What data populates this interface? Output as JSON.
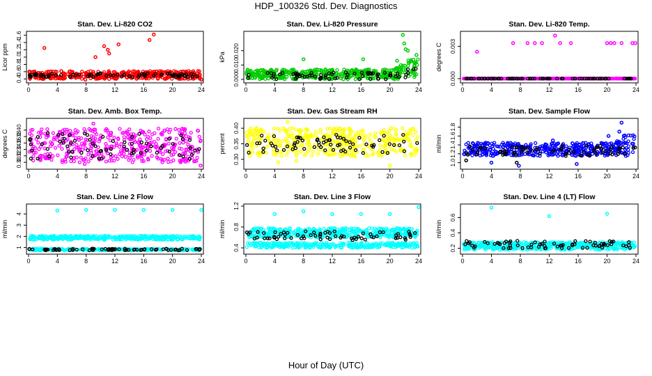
{
  "page": {
    "title": "HDP_100326  Std. Dev. Diagnostics",
    "xlabel": "Hour of Day (UTC)"
  },
  "chart_data": [
    {
      "type": "scatter",
      "title": "Stan. Dev. Li-820 CO2",
      "ylabel": "Licor ppm",
      "xlim": [
        0,
        24
      ],
      "ylim": [
        0.35,
        1.65
      ],
      "xticks": [
        "0",
        "4",
        "8",
        "12",
        "16",
        "20",
        "24"
      ],
      "yticks": [
        "0.4",
        "0.6",
        "0.8",
        "1.0",
        "1.2",
        "1.4",
        "1.6"
      ],
      "primary_color": "#ff0000",
      "black_points": "pale",
      "series": [
        {
          "name": "primary",
          "color": "#ff0000",
          "band": [
            0.4,
            0.62
          ],
          "outliers": [
            [
              2.2,
              1.25
            ],
            [
              9.3,
              1.0
            ],
            [
              10.5,
              1.3
            ],
            [
              11.0,
              1.2
            ],
            [
              11.2,
              1.1
            ],
            [
              12.5,
              1.35
            ],
            [
              16.8,
              1.47
            ],
            [
              17.4,
              1.62
            ],
            [
              21.0,
              0.4
            ],
            [
              7.9,
              0.38
            ],
            [
              24.0,
              0.38
            ]
          ]
        },
        {
          "name": "black",
          "color": "#000000",
          "band": [
            0.45,
            0.56
          ],
          "outliers": []
        }
      ]
    },
    {
      "type": "scatter",
      "title": "Stan. Dev. Li-820 Pressure",
      "ylabel": "kPa",
      "xlim": [
        0,
        24
      ],
      "ylim": [
        -0.001,
        0.032
      ],
      "xticks": [
        "0",
        "4",
        "8",
        "12",
        "16",
        "20",
        "24"
      ],
      "yticks": [
        "0.000",
        "0.010",
        "0.020"
      ],
      "primary_color": "#00cc00",
      "black_points": "normal",
      "series": [
        {
          "name": "primary",
          "color": "#00cc00",
          "band": [
            0.0,
            0.007
          ],
          "rising_after": 20.5,
          "rise_to": 0.014,
          "outliers": [
            [
              8.0,
              0.014
            ],
            [
              16.3,
              0.014
            ],
            [
              21.8,
              0.031
            ],
            [
              22.0,
              0.025
            ],
            [
              22.2,
              0.021
            ],
            [
              23.7,
              0.017
            ],
            [
              21.0,
              0.013
            ],
            [
              22.5,
              0.02
            ]
          ]
        },
        {
          "name": "black",
          "color": "#000000",
          "band": [
            0.0,
            0.005
          ],
          "rising_after": 20.5,
          "rise_to": 0.008,
          "outliers": []
        }
      ]
    },
    {
      "type": "scatter",
      "title": "Stan. Dev. Li-820 Temp.",
      "ylabel": "degrees C",
      "xlim": [
        0,
        24
      ],
      "ylim": [
        -0.0002,
        0.0042
      ],
      "xticks": [
        "0",
        "4",
        "8",
        "12",
        "16",
        "20",
        "24"
      ],
      "yticks": [
        "0.000",
        "0.003"
      ],
      "primary_color": "#ff00ff",
      "black_points": "baseline",
      "series": [
        {
          "name": "primary",
          "color": "#ff00ff",
          "band": [
            0.0,
            0.0
          ],
          "outliers": [
            [
              2.0,
              0.0025
            ],
            [
              7.0,
              0.0033
            ],
            [
              9.0,
              0.0033
            ],
            [
              10.0,
              0.0033
            ],
            [
              11.0,
              0.0033
            ],
            [
              12.8,
              0.004
            ],
            [
              13.5,
              0.0033
            ],
            [
              15.0,
              0.0033
            ],
            [
              20.0,
              0.0033
            ],
            [
              20.5,
              0.0033
            ],
            [
              21.0,
              0.0033
            ],
            [
              22.0,
              0.0033
            ],
            [
              23.5,
              0.0033
            ],
            [
              23.9,
              0.0033
            ]
          ]
        },
        {
          "name": "black",
          "color": "#000000",
          "band": [
            0.0,
            0.0
          ],
          "outliers": []
        }
      ]
    },
    {
      "type": "scatter",
      "title": "Stan. Dev. Amb. Box Temp.",
      "ylabel": "degrees C",
      "xlim": [
        0,
        24
      ],
      "ylim": [
        0.285,
        0.43
      ],
      "xticks": [
        "0",
        "4",
        "8",
        "12",
        "16",
        "20",
        "24"
      ],
      "yticks": [
        "0.30",
        "0.32",
        "0.34",
        "0.36",
        "0.38",
        "0.40"
      ],
      "primary_color": "#ff00ff",
      "black_points": "normal",
      "series": [
        {
          "name": "primary",
          "color": "#ff00ff",
          "band": [
            0.3,
            0.405
          ],
          "outliers": [
            [
              9.0,
              0.42
            ],
            [
              7.8,
              0.295
            ],
            [
              23.9,
              0.29
            ]
          ]
        },
        {
          "name": "black",
          "color": "#000000",
          "band": [
            0.31,
            0.39
          ],
          "outliers": []
        }
      ]
    },
    {
      "type": "scatter",
      "title": "Stan. Dev. Gas Stream RH",
      "ylabel": "percent",
      "xlim": [
        0,
        24
      ],
      "ylim": [
        0.275,
        0.425
      ],
      "xticks": [
        "0",
        "4",
        "8",
        "12",
        "16",
        "20",
        "24"
      ],
      "yticks": [
        "0.30",
        "0.35",
        "0.40"
      ],
      "primary_color": "#ffff00",
      "black_points": "normal",
      "series": [
        {
          "name": "primary",
          "color": "#ffff00",
          "band": [
            0.31,
            0.4
          ],
          "outliers": [
            [
              5.8,
              0.42
            ],
            [
              4.5,
              0.29
            ],
            [
              20.0,
              0.28
            ],
            [
              7.0,
              0.295
            ]
          ]
        },
        {
          "name": "black",
          "color": "#000000",
          "band": [
            0.32,
            0.38
          ],
          "outliers": []
        }
      ]
    },
    {
      "type": "scatter",
      "title": "Stan. Dev. Sample Flow",
      "ylabel": "ml/min",
      "xlim": [
        0,
        24
      ],
      "ylim": [
        0.9,
        1.95
      ],
      "xticks": [
        "0",
        "4",
        "8",
        "12",
        "16",
        "20",
        "24"
      ],
      "yticks": [
        "1.0",
        "1.2",
        "1.4",
        "1.6",
        "1.8"
      ],
      "primary_color": "#0000ff",
      "black_points": "normal",
      "series": [
        {
          "name": "primary",
          "color": "#0000ff",
          "band": [
            1.15,
            1.45
          ],
          "rising_after": 21.0,
          "rise_to": 1.75,
          "outliers": [
            [
              22.0,
              1.9
            ],
            [
              12.5,
              1.5
            ],
            [
              7.8,
              0.93
            ],
            [
              15.8,
              0.97
            ],
            [
              4.0,
              1.0
            ],
            [
              20.2,
              1.6
            ],
            [
              21.7,
              1.7
            ]
          ]
        },
        {
          "name": "black",
          "color": "#000000",
          "band": [
            1.15,
            1.4
          ],
          "outliers": [
            [
              0.5,
              1.05
            ],
            [
              7.5,
              1.0
            ]
          ]
        }
      ]
    },
    {
      "type": "scatter",
      "title": "Stan. Dev. Line 2 Flow",
      "ylabel": "ml/min",
      "xlim": [
        0,
        24
      ],
      "ylim": [
        0.6,
        4.7
      ],
      "xticks": [
        "0",
        "4",
        "8",
        "12",
        "16",
        "20",
        "24"
      ],
      "yticks": [
        "1",
        "2",
        "3",
        "4"
      ],
      "primary_color": "#00ffff",
      "black_points": "normal",
      "series": [
        {
          "name": "primary",
          "color": "#00ffff",
          "band": [
            1.7,
            2.05
          ],
          "lower_band": [
            0.75,
            0.9
          ],
          "outliers": [
            [
              4.0,
              4.3
            ],
            [
              8.0,
              4.35
            ],
            [
              12.0,
              4.35
            ],
            [
              16.0,
              4.35
            ],
            [
              20.0,
              4.35
            ],
            [
              24.0,
              4.35
            ]
          ]
        },
        {
          "name": "black",
          "color": "#000000",
          "band": [
            0.75,
            0.9
          ],
          "outliers": []
        }
      ]
    },
    {
      "type": "scatter",
      "title": "Stan. Dev. Line 3 Flow",
      "ylabel": "ml/min",
      "xlim": [
        0,
        24
      ],
      "ylim": [
        0.32,
        1.2
      ],
      "xticks": [
        "0",
        "4",
        "8",
        "12",
        "16",
        "20",
        "24"
      ],
      "yticks": [
        "0.4",
        "0.8",
        "1.2"
      ],
      "primary_color": "#00ffff",
      "black_points": "normal",
      "series": [
        {
          "name": "primary",
          "color": "#00ffff",
          "band": [
            0.6,
            0.78
          ],
          "lower_band": [
            0.4,
            0.5
          ],
          "outliers": [
            [
              4.0,
              1.05
            ],
            [
              8.0,
              1.1
            ],
            [
              12.0,
              1.05
            ],
            [
              16.0,
              1.05
            ],
            [
              20.0,
              1.05
            ],
            [
              24.0,
              1.18
            ]
          ]
        },
        {
          "name": "black",
          "color": "#000000",
          "band": [
            0.55,
            0.72
          ],
          "outliers": []
        }
      ]
    },
    {
      "type": "scatter",
      "title": "Stan. Dev. Line 4 (LT) Flow",
      "ylabel": "ml/min",
      "xlim": [
        0,
        24
      ],
      "ylim": [
        0.15,
        0.75
      ],
      "xticks": [
        "0",
        "4",
        "8",
        "12",
        "16",
        "20",
        "24"
      ],
      "yticks": [
        "0.2",
        "0.4",
        "0.6"
      ],
      "primary_color": "#00ffff",
      "black_points": "normal",
      "series": [
        {
          "name": "primary",
          "color": "#00ffff",
          "band": [
            0.18,
            0.28
          ],
          "outliers": [
            [
              4.0,
              0.73
            ],
            [
              12.0,
              0.62
            ],
            [
              20.0,
              0.65
            ]
          ]
        },
        {
          "name": "black",
          "color": "#000000",
          "band": [
            0.2,
            0.3
          ],
          "outliers": []
        }
      ]
    }
  ]
}
